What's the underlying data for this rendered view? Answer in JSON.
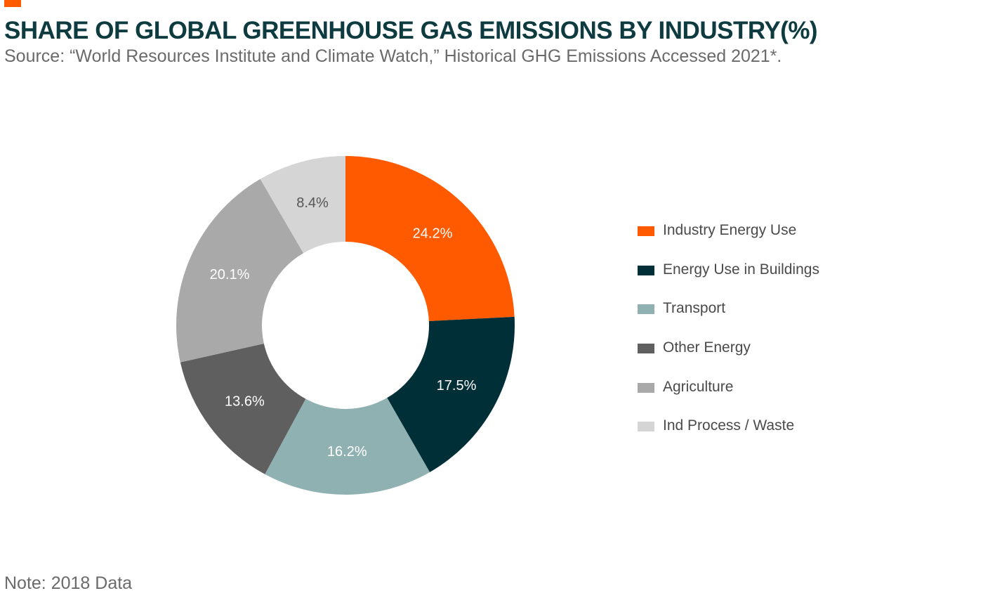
{
  "header": {
    "title": "SHARE OF GLOBAL GREENHOUSE GAS EMISSIONS BY INDUSTRY(%)",
    "subtitle": "Source: “World Resources Institute and Climate Watch,” Historical GHG Emissions Accessed 2021*."
  },
  "footer": {
    "note": "Note: 2018 Data"
  },
  "colors": {
    "accent": "#ff5a00",
    "title": "#0d3b40"
  },
  "chart_data": {
    "type": "pie",
    "variant": "donut",
    "title": "SHARE OF GLOBAL GREENHOUSE GAS EMISSIONS BY INDUSTRY(%)",
    "legend_position": "right",
    "slices": [
      {
        "name": "Industry Energy Use",
        "value": 24.2,
        "label": "24.2%",
        "color": "#ff5a00",
        "label_color": "#ffffff"
      },
      {
        "name": "Energy Use in Buildings",
        "value": 17.5,
        "label": "17.5%",
        "color": "#002f38",
        "label_color": "#ffffff"
      },
      {
        "name": "Transport",
        "value": 16.2,
        "label": "16.2%",
        "color": "#8fb1b1",
        "label_color": "#ffffff"
      },
      {
        "name": "Other Energy",
        "value": 13.6,
        "label": "13.6%",
        "color": "#5f5f5f",
        "label_color": "#ffffff"
      },
      {
        "name": "Agriculture",
        "value": 20.1,
        "label": "20.1%",
        "color": "#a9a9a9",
        "label_color": "#ffffff"
      },
      {
        "name": "Ind Process / Waste",
        "value": 8.4,
        "label": "8.4%",
        "color": "#d5d5d5",
        "label_color": "#555555"
      }
    ]
  }
}
